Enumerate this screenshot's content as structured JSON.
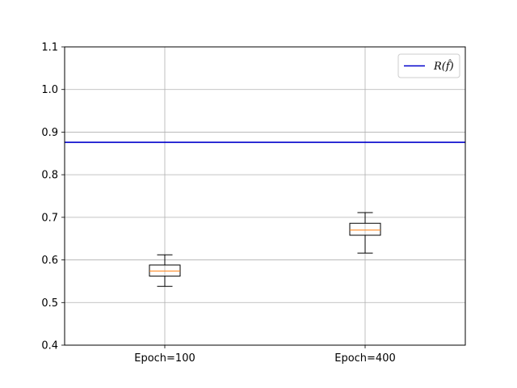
{
  "chart_data": {
    "type": "box",
    "categories": [
      "Epoch=100",
      "Epoch=400"
    ],
    "boxes": [
      {
        "category": "Epoch=100",
        "whisker_low": 0.538,
        "q1": 0.562,
        "median": 0.574,
        "q3": 0.588,
        "whisker_high": 0.612
      },
      {
        "category": "Epoch=400",
        "whisker_low": 0.616,
        "q1": 0.658,
        "median": 0.67,
        "q3": 0.686,
        "whisker_high": 0.711
      }
    ],
    "reference_line": {
      "name": "R(f̂)",
      "value": 0.876,
      "color": "#0000cc"
    },
    "ylim": [
      0.4,
      1.1
    ],
    "yticks": [
      "0.4",
      "0.5",
      "0.6",
      "0.7",
      "0.8",
      "0.9",
      "1.0",
      "1.1"
    ],
    "grid": true,
    "legend_position": "top-right",
    "colors": {
      "box": "#000000",
      "median": "#ff7f0e",
      "grid": "#b0b0b0"
    }
  }
}
